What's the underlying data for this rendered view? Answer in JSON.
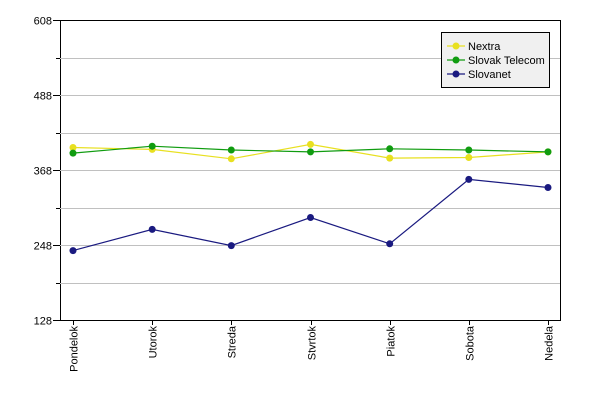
{
  "chart_data": {
    "type": "line",
    "categories": [
      "Pondelok",
      "Utorok",
      "Streda",
      "Stvrtok",
      "Piatok",
      "Sobota",
      "Nedela"
    ],
    "ylim": [
      128,
      608
    ],
    "yticks": [
      128,
      248,
      368,
      488,
      608
    ],
    "grid": true,
    "legend_position": "top-right",
    "series": [
      {
        "name": "Nextra",
        "color": "#e8e020",
        "values": [
          404,
          401,
          386,
          409,
          387,
          388,
          397
        ]
      },
      {
        "name": "Slovak Telecom",
        "color": "#109c10",
        "values": [
          395,
          406,
          400,
          397,
          402,
          400,
          397
        ]
      },
      {
        "name": "Slovanet",
        "color": "#1a1a80",
        "values": [
          239,
          273,
          247,
          292,
          250,
          353,
          340
        ]
      }
    ]
  }
}
